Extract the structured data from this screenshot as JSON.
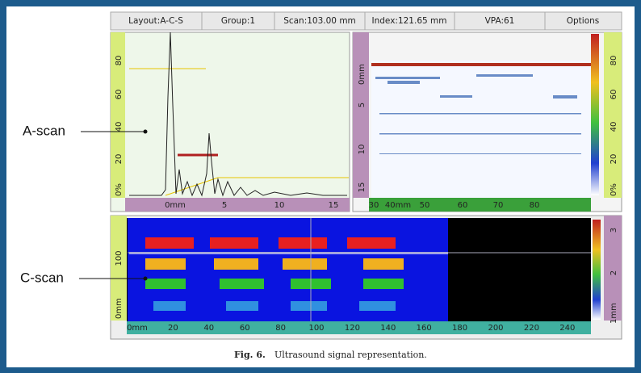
{
  "toolbar": [
    "Layout:A-C-S",
    "Group:1",
    "Scan:103.00 mm",
    "Index:121.65 mm",
    "VPA:61",
    "Options"
  ],
  "annotations": {
    "a_scan": "A-scan",
    "c_scan": "C-scan"
  },
  "a_scan": {
    "y_ticks": [
      "80",
      "60",
      "40",
      "20",
      "0%"
    ],
    "x_ticks": [
      "0mm",
      "5",
      "10",
      "15"
    ]
  },
  "b_scan": {
    "y_ticks": [
      "0mm",
      "5",
      "10",
      "15"
    ],
    "x_ticks": [
      "30",
      "40mm",
      "50",
      "60",
      "70",
      "80"
    ],
    "amplitude_ticks": [
      "80",
      "60",
      "40",
      "20",
      "0%"
    ]
  },
  "c_scan": {
    "y_ticks": [
      "100",
      "0mm"
    ],
    "color_ticks": [
      "3",
      "2",
      "1mm"
    ],
    "x_ticks": [
      "0mm",
      "20",
      "40",
      "60",
      "80",
      "100",
      "120",
      "140",
      "160",
      "180",
      "200",
      "220",
      "240"
    ]
  },
  "caption": {
    "label": "Fig. 6.",
    "text": "Ultrasound signal representation."
  }
}
